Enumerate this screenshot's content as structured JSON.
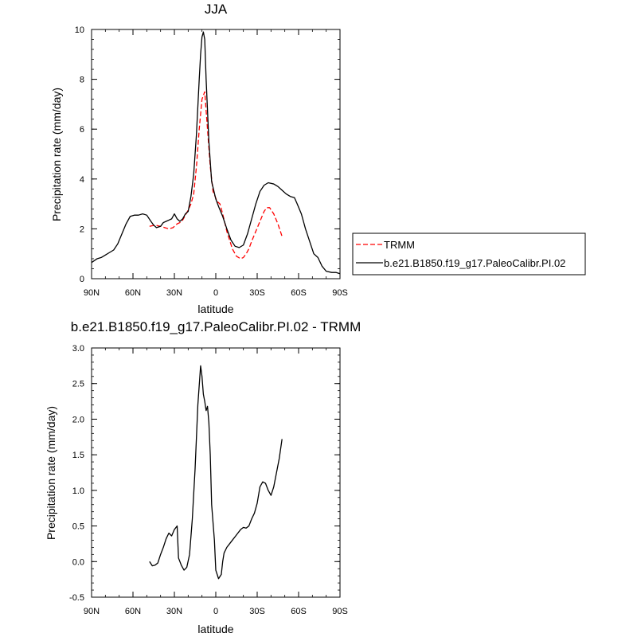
{
  "chart_data": [
    {
      "type": "line",
      "title": "JJA",
      "xlabel": "latitude",
      "ylabel": "Precipitation rate (mm/day)",
      "xlim": [
        90,
        -90
      ],
      "ylim": [
        0,
        10
      ],
      "x_ticks": [
        {
          "value": 90,
          "label": "90N"
        },
        {
          "value": 60,
          "label": "60N"
        },
        {
          "value": 30,
          "label": "30N"
        },
        {
          "value": 0,
          "label": "0"
        },
        {
          "value": -30,
          "label": "30S"
        },
        {
          "value": -60,
          "label": "60S"
        },
        {
          "value": -90,
          "label": "90S"
        }
      ],
      "y_ticks": [
        {
          "value": 0,
          "label": "0"
        },
        {
          "value": 2,
          "label": "2"
        },
        {
          "value": 4,
          "label": "4"
        },
        {
          "value": 6,
          "label": "6"
        },
        {
          "value": 8,
          "label": "8"
        },
        {
          "value": 10,
          "label": "10"
        }
      ],
      "legend_position": "right",
      "series": [
        {
          "name": "TRMM",
          "color": "#ff0000",
          "dashed": true,
          "points": [
            [
              -48,
              1.7
            ],
            [
              -45,
              2.2
            ],
            [
              -42,
              2.6
            ],
            [
              -39,
              2.85
            ],
            [
              -37,
              2.85
            ],
            [
              -35,
              2.7
            ],
            [
              -32,
              2.3
            ],
            [
              -29,
              1.9
            ],
            [
              -26,
              1.5
            ],
            [
              -24,
              1.2
            ],
            [
              -22,
              1.0
            ],
            [
              -20,
              0.85
            ],
            [
              -18,
              0.8
            ],
            [
              -15,
              0.9
            ],
            [
              -12,
              1.2
            ],
            [
              -8,
              1.9
            ],
            [
              -5,
              2.6
            ],
            [
              -3,
              3.0
            ],
            [
              -1,
              3.1
            ],
            [
              2,
              3.5
            ],
            [
              4,
              4.5
            ],
            [
              6,
              6.0
            ],
            [
              8,
              7.5
            ],
            [
              10,
              7.2
            ],
            [
              12,
              6.0
            ],
            [
              14,
              4.5
            ],
            [
              16,
              3.4
            ],
            [
              18,
              3.0
            ],
            [
              20,
              2.75
            ],
            [
              22,
              2.55
            ],
            [
              24,
              2.35
            ],
            [
              26,
              2.25
            ],
            [
              28,
              2.2
            ],
            [
              31,
              2.05
            ],
            [
              34,
              2.0
            ],
            [
              37,
              2.05
            ],
            [
              40,
              2.1
            ],
            [
              44,
              2.15
            ],
            [
              48,
              2.1
            ]
          ]
        },
        {
          "name": "b.e21.B1850.f19_g17.PaleoCalibr.PI.02",
          "color": "#000000",
          "dashed": false,
          "points": [
            [
              -90,
              0.2
            ],
            [
              -87,
              0.25
            ],
            [
              -84,
              0.25
            ],
            [
              -80,
              0.3
            ],
            [
              -77,
              0.5
            ],
            [
              -74,
              0.85
            ],
            [
              -71,
              1.0
            ],
            [
              -68,
              1.5
            ],
            [
              -65,
              2.0
            ],
            [
              -62,
              2.6
            ],
            [
              -59,
              3.0
            ],
            [
              -57,
              3.25
            ],
            [
              -54,
              3.3
            ],
            [
              -51,
              3.4
            ],
            [
              -48,
              3.55
            ],
            [
              -45,
              3.7
            ],
            [
              -42,
              3.8
            ],
            [
              -38,
              3.85
            ],
            [
              -35,
              3.75
            ],
            [
              -32,
              3.5
            ],
            [
              -29,
              3.0
            ],
            [
              -26,
              2.4
            ],
            [
              -23,
              1.8
            ],
            [
              -20,
              1.35
            ],
            [
              -17,
              1.25
            ],
            [
              -14,
              1.3
            ],
            [
              -11,
              1.55
            ],
            [
              -8,
              2.0
            ],
            [
              -5,
              2.5
            ],
            [
              -2,
              2.9
            ],
            [
              0,
              3.2
            ],
            [
              3,
              3.9
            ],
            [
              5,
              5.5
            ],
            [
              7,
              8.0
            ],
            [
              8,
              9.6
            ],
            [
              9,
              9.9
            ],
            [
              10,
              9.7
            ],
            [
              11,
              9.0
            ],
            [
              12,
              8.0
            ],
            [
              14,
              5.8
            ],
            [
              16,
              4.2
            ],
            [
              18,
              3.3
            ],
            [
              20,
              2.7
            ],
            [
              22,
              2.6
            ],
            [
              24,
              2.4
            ],
            [
              26,
              2.3
            ],
            [
              28,
              2.4
            ],
            [
              30,
              2.6
            ],
            [
              32,
              2.4
            ],
            [
              34,
              2.35
            ],
            [
              36,
              2.3
            ],
            [
              38,
              2.25
            ],
            [
              40,
              2.1
            ],
            [
              43,
              2.05
            ],
            [
              45,
              2.15
            ],
            [
              47,
              2.3
            ],
            [
              50,
              2.55
            ],
            [
              53,
              2.6
            ],
            [
              56,
              2.55
            ],
            [
              59,
              2.55
            ],
            [
              62,
              2.5
            ],
            [
              65,
              2.2
            ],
            [
              68,
              1.8
            ],
            [
              71,
              1.4
            ],
            [
              74,
              1.15
            ],
            [
              77,
              1.05
            ],
            [
              80,
              0.95
            ],
            [
              83,
              0.85
            ],
            [
              86,
              0.8
            ],
            [
              90,
              0.65
            ]
          ]
        }
      ]
    },
    {
      "type": "line",
      "title": "b.e21.B1850.f19_g17.PaleoCalibr.PI.02 - TRMM",
      "xlabel": "latitude",
      "ylabel": "Precipitation rate (mm/day)",
      "xlim": [
        90,
        -90
      ],
      "ylim": [
        -0.5,
        3.0
      ],
      "x_ticks": [
        {
          "value": 90,
          "label": "90N"
        },
        {
          "value": 60,
          "label": "60N"
        },
        {
          "value": 30,
          "label": "30N"
        },
        {
          "value": 0,
          "label": "0"
        },
        {
          "value": -30,
          "label": "30S"
        },
        {
          "value": -60,
          "label": "60S"
        },
        {
          "value": -90,
          "label": "90S"
        }
      ],
      "y_ticks": [
        {
          "value": -0.5,
          "label": "-0.5"
        },
        {
          "value": 0,
          "label": "0.0"
        },
        {
          "value": 0.5,
          "label": "0.5"
        },
        {
          "value": 1.0,
          "label": "1.0"
        },
        {
          "value": 1.5,
          "label": "1.5"
        },
        {
          "value": 2.0,
          "label": "2.0"
        },
        {
          "value": 2.5,
          "label": "2.5"
        },
        {
          "value": 3.0,
          "label": "3.0"
        }
      ],
      "series": [
        {
          "color": "#000000",
          "dashed": false,
          "points": [
            [
              -48,
              1.72
            ],
            [
              -46,
              1.45
            ],
            [
              -44,
              1.25
            ],
            [
              -42,
              1.05
            ],
            [
              -40,
              0.93
            ],
            [
              -38,
              1.0
            ],
            [
              -36,
              1.1
            ],
            [
              -34,
              1.12
            ],
            [
              -32,
              1.05
            ],
            [
              -30,
              0.82
            ],
            [
              -28,
              0.68
            ],
            [
              -26,
              0.6
            ],
            [
              -24,
              0.5
            ],
            [
              -22,
              0.47
            ],
            [
              -20,
              0.48
            ],
            [
              -18,
              0.45
            ],
            [
              -16,
              0.4
            ],
            [
              -14,
              0.35
            ],
            [
              -12,
              0.3
            ],
            [
              -10,
              0.25
            ],
            [
              -8,
              0.2
            ],
            [
              -6,
              0.12
            ],
            [
              -5,
              0.0
            ],
            [
              -4,
              -0.18
            ],
            [
              -2,
              -0.24
            ],
            [
              0,
              -0.12
            ],
            [
              1,
              0.3
            ],
            [
              3,
              0.8
            ],
            [
              4,
              1.5
            ],
            [
              5,
              1.95
            ],
            [
              6,
              2.18
            ],
            [
              7,
              2.12
            ],
            [
              8,
              2.25
            ],
            [
              9,
              2.35
            ],
            [
              10,
              2.6
            ],
            [
              11,
              2.75
            ],
            [
              13,
              2.2
            ],
            [
              15,
              1.3
            ],
            [
              17,
              0.6
            ],
            [
              19,
              0.1
            ],
            [
              21,
              -0.08
            ],
            [
              23,
              -0.12
            ],
            [
              25,
              -0.05
            ],
            [
              27,
              0.05
            ],
            [
              28,
              0.5
            ],
            [
              30,
              0.45
            ],
            [
              32,
              0.36
            ],
            [
              34,
              0.4
            ],
            [
              36,
              0.32
            ],
            [
              38,
              0.2
            ],
            [
              40,
              0.1
            ],
            [
              42,
              -0.02
            ],
            [
              44,
              -0.05
            ],
            [
              46,
              -0.06
            ],
            [
              48,
              0.0
            ]
          ]
        }
      ]
    }
  ]
}
